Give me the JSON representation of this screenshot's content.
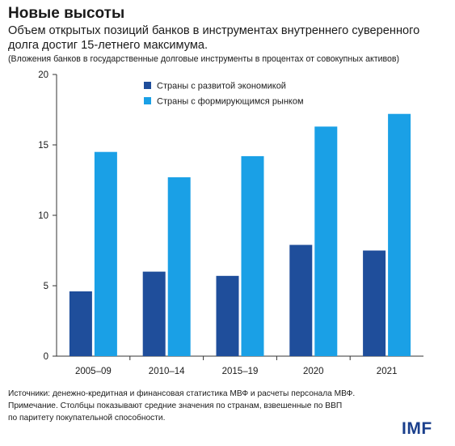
{
  "header": {
    "title": "Новые высоты",
    "subtitle": "Объем открытых позиций банков в инструментах внутреннего суверенного долга достиг 15-летнего максимума.",
    "note": "(Вложения банков в государственные долговые инструменты в процентах от совокупных активов)"
  },
  "footer": {
    "sources_line1": "Источники: денежно-кредитная и финансовая статистика МВФ и расчеты персонала МВФ.",
    "sources_line2": "Примечание. Столбцы показывают средние значения по странам, взвешенные по ВВП",
    "sources_line3": "по паритету покупательной способности.",
    "logo": "IMF",
    "logo_color": "#1a3f8c"
  },
  "chart_data": {
    "type": "bar",
    "categories": [
      "2005–09",
      "2010–14",
      "2015–19",
      "2020",
      "2021"
    ],
    "series": [
      {
        "name": "Страны с развитой экономикой",
        "values": [
          4.6,
          6.0,
          5.7,
          7.9,
          7.5
        ],
        "color": "#1f4e9b"
      },
      {
        "name": "Страны с формирующимся рынком",
        "values": [
          14.5,
          12.7,
          14.2,
          16.3,
          17.2
        ],
        "color": "#1aa0e6"
      }
    ],
    "ylim": [
      0,
      20
    ],
    "yticks": [
      0,
      5,
      10,
      15,
      20
    ],
    "grid": false,
    "legend_position": "top-center"
  }
}
